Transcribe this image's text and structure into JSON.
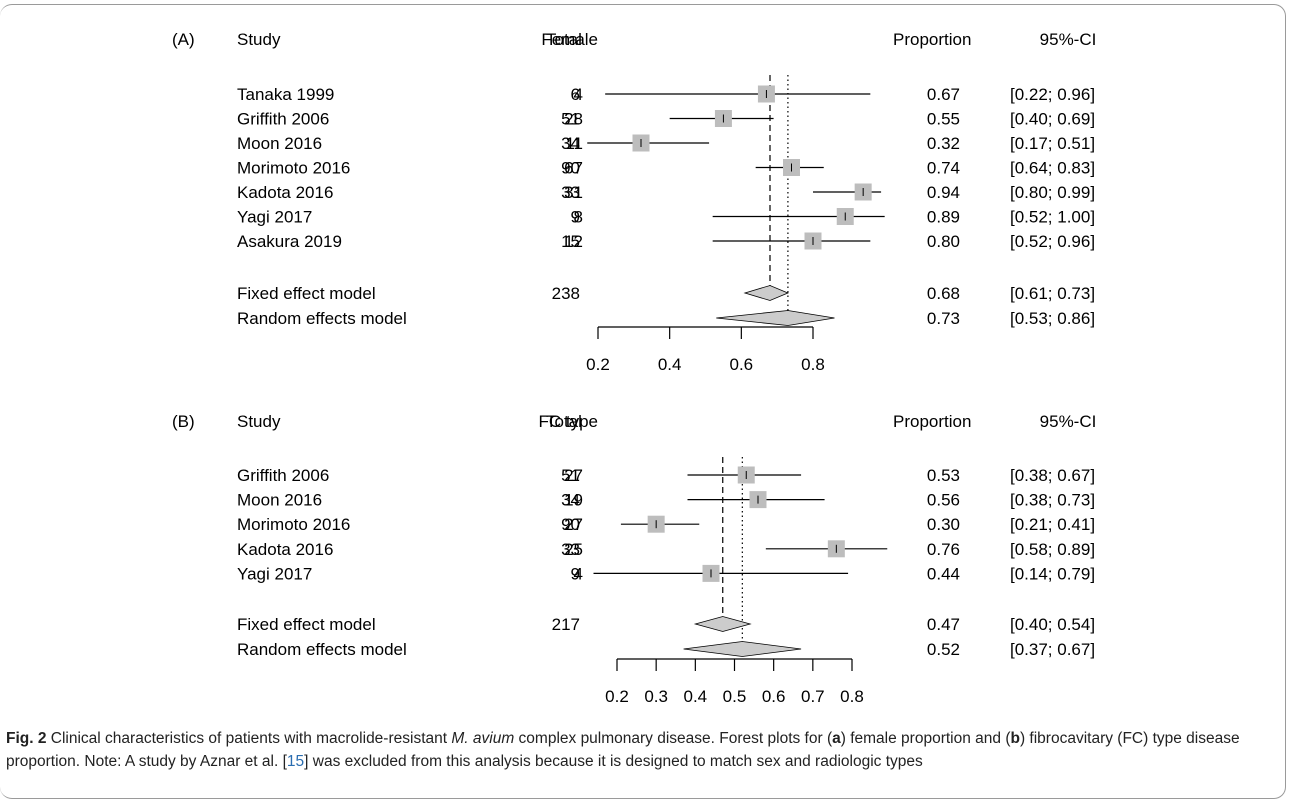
{
  "chart_data": [
    {
      "type": "forest",
      "panel_label": "(A)",
      "columns": {
        "study": "Study",
        "events": "Female",
        "total": "Total",
        "proportion": "Proportion",
        "ci": "95%-CI"
      },
      "studies": [
        {
          "study": "Tanaka 1999",
          "events": "4",
          "total": "6",
          "proportion": 0.67,
          "ci_low": 0.22,
          "ci_high": 0.96,
          "prop_text": "0.67",
          "ci_text": "[0.22; 0.96]"
        },
        {
          "study": "Griffith 2006",
          "events": "28",
          "total": "51",
          "proportion": 0.55,
          "ci_low": 0.4,
          "ci_high": 0.69,
          "prop_text": "0.55",
          "ci_text": "[0.40; 0.69]"
        },
        {
          "study": "Moon 2016",
          "events": "11",
          "total": "34",
          "proportion": 0.32,
          "ci_low": 0.17,
          "ci_high": 0.51,
          "prop_text": "0.32",
          "ci_text": "[0.17; 0.51]"
        },
        {
          "study": "Morimoto 2016",
          "events": "67",
          "total": "90",
          "proportion": 0.74,
          "ci_low": 0.64,
          "ci_high": 0.83,
          "prop_text": "0.74",
          "ci_text": "[0.64; 0.83]"
        },
        {
          "study": "Kadota 2016",
          "events": "31",
          "total": "33",
          "proportion": 0.94,
          "ci_low": 0.8,
          "ci_high": 0.99,
          "prop_text": "0.94",
          "ci_text": "[0.80; 0.99]"
        },
        {
          "study": "Yagi 2017",
          "events": "8",
          "total": "9",
          "proportion": 0.89,
          "ci_low": 0.52,
          "ci_high": 1.0,
          "prop_text": "0.89",
          "ci_text": "[0.52; 1.00]"
        },
        {
          "study": "Asakura 2019",
          "events": "12",
          "total": "15",
          "proportion": 0.8,
          "ci_low": 0.52,
          "ci_high": 0.96,
          "prop_text": "0.80",
          "ci_text": "[0.52; 0.96]"
        }
      ],
      "fixed": {
        "label": "Fixed effect model",
        "total": "238",
        "estimate": 0.68,
        "ci_low": 0.61,
        "ci_high": 0.73,
        "prop_text": "0.68",
        "ci_text": "[0.61; 0.73]"
      },
      "random": {
        "label": "Random effects model",
        "estimate": 0.73,
        "ci_low": 0.53,
        "ci_high": 0.86,
        "prop_text": "0.73",
        "ci_text": "[0.53; 0.86]"
      },
      "axis_ticks": [
        0.2,
        0.4,
        0.6,
        0.8
      ],
      "axis_tick_labels": [
        "0.2",
        "0.4",
        "0.6",
        "0.8"
      ],
      "xlim": [
        0.2,
        1.0
      ]
    },
    {
      "type": "forest",
      "panel_label": "(B)",
      "columns": {
        "study": "Study",
        "events": "FC type",
        "total": "Total",
        "proportion": "Proportion",
        "ci": "95%-CI"
      },
      "studies": [
        {
          "study": "Griffith 2006",
          "events": "27",
          "total": "51",
          "proportion": 0.53,
          "ci_low": 0.38,
          "ci_high": 0.67,
          "prop_text": "0.53",
          "ci_text": "[0.38; 0.67]"
        },
        {
          "study": "Moon 2016",
          "events": "19",
          "total": "34",
          "proportion": 0.56,
          "ci_low": 0.38,
          "ci_high": 0.73,
          "prop_text": "0.56",
          "ci_text": "[0.38; 0.73]"
        },
        {
          "study": "Morimoto 2016",
          "events": "27",
          "total": "90",
          "proportion": 0.3,
          "ci_low": 0.21,
          "ci_high": 0.41,
          "prop_text": "0.30",
          "ci_text": "[0.21; 0.41]"
        },
        {
          "study": "Kadota 2016",
          "events": "25",
          "total": "33",
          "proportion": 0.76,
          "ci_low": 0.58,
          "ci_high": 0.89,
          "prop_text": "0.76",
          "ci_text": "[0.58; 0.89]"
        },
        {
          "study": "Yagi 2017",
          "events": "4",
          "total": "9",
          "proportion": 0.44,
          "ci_low": 0.14,
          "ci_high": 0.79,
          "prop_text": "0.44",
          "ci_text": "[0.14; 0.79]"
        }
      ],
      "fixed": {
        "label": "Fixed effect model",
        "total": "217",
        "estimate": 0.47,
        "ci_low": 0.4,
        "ci_high": 0.54,
        "prop_text": "0.47",
        "ci_text": "[0.40; 0.54]"
      },
      "random": {
        "label": "Random effects model",
        "estimate": 0.52,
        "ci_low": 0.37,
        "ci_high": 0.67,
        "prop_text": "0.52",
        "ci_text": "[0.37; 0.67]"
      },
      "axis_ticks": [
        0.2,
        0.3,
        0.4,
        0.5,
        0.6,
        0.7,
        0.8
      ],
      "axis_tick_labels": [
        "0.2",
        "0.3",
        "0.4",
        "0.5",
        "0.6",
        "0.7",
        "0.8"
      ],
      "xlim": [
        0.14,
        0.89
      ]
    }
  ],
  "caption": {
    "fig_label": "Fig. 2",
    "seg1": " Clinical characteristics of patients with macrolide-resistant ",
    "species": "M. avium",
    "seg2": " complex pulmonary disease. Forest plots for (",
    "a": "a",
    "seg3": ") female proportion and (",
    "b": "b",
    "seg4": ") fibrocavitary (FC) type disease proportion. Note: A study by Aznar et al. [",
    "ref": "15",
    "seg5": "] was excluded from this analysis because it is designed to match sex and radiologic types"
  },
  "colors": {
    "square": "#bdbdbd",
    "diamond": "#cccccc",
    "line": "#000000",
    "caption_link": "#2a6db0"
  }
}
